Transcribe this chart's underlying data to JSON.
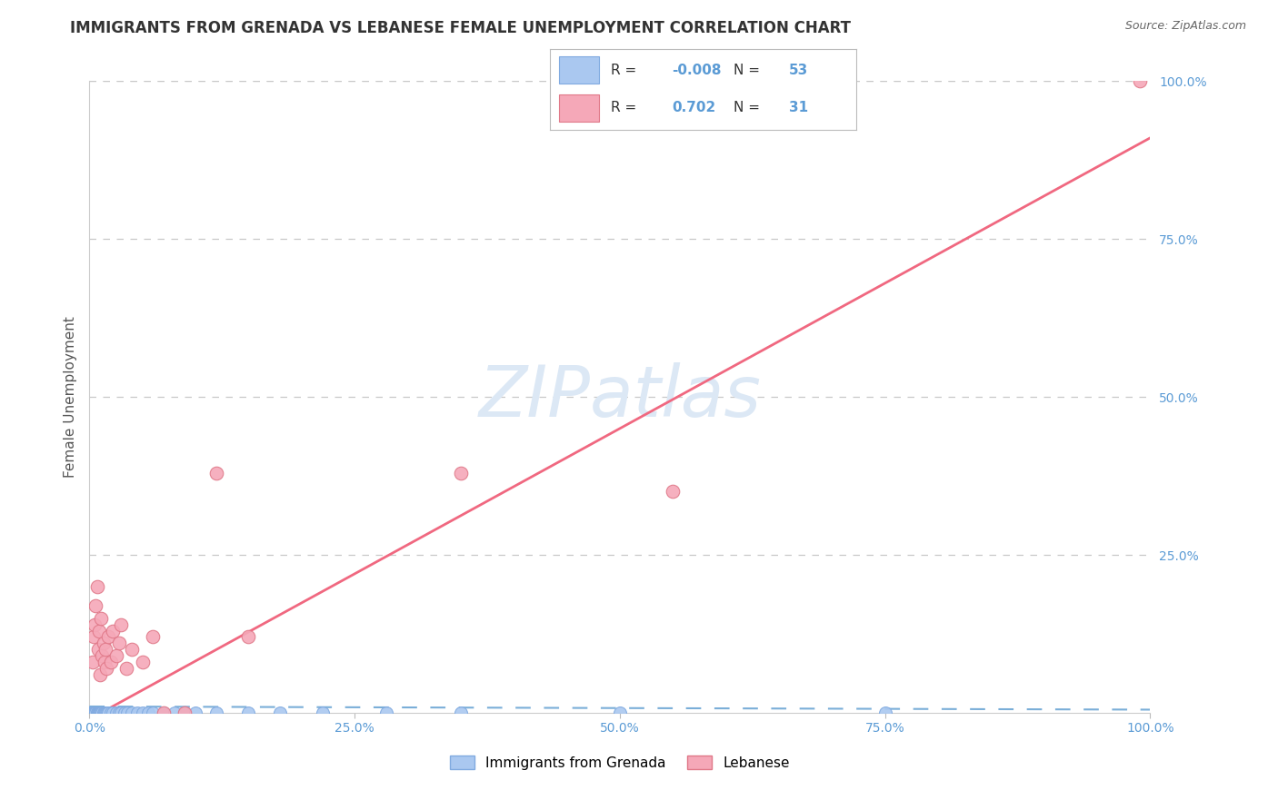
{
  "title": "IMMIGRANTS FROM GRENADA VS LEBANESE FEMALE UNEMPLOYMENT CORRELATION CHART",
  "source": "Source: ZipAtlas.com",
  "ylabel": "Female Unemployment",
  "legend_bottom": [
    "Immigrants from Grenada",
    "Lebanese"
  ],
  "r_grenada": "-0.008",
  "n_grenada": "53",
  "r_lebanese": "0.702",
  "n_lebanese": "31",
  "title_color": "#333333",
  "source_color": "#666666",
  "axis_label_color": "#555555",
  "tick_color": "#5b9bd5",
  "grid_color": "#c8c8c8",
  "watermark_text": "ZIPatlas",
  "watermark_color": "#dce8f5",
  "grenada_color": "#aac8f0",
  "grenada_edge": "#80aae0",
  "lebanese_color": "#f5a8b8",
  "lebanese_edge": "#e07888",
  "grenada_line_color": "#7aaed8",
  "lebanese_line_color": "#f06880",
  "legend_text_color": "#333333",
  "legend_value_color": "#5b9bd5",
  "grenada_x": [
    0.0,
    0.001,
    0.001,
    0.002,
    0.002,
    0.003,
    0.003,
    0.004,
    0.004,
    0.005,
    0.005,
    0.006,
    0.006,
    0.007,
    0.007,
    0.008,
    0.008,
    0.009,
    0.009,
    0.01,
    0.01,
    0.011,
    0.012,
    0.013,
    0.014,
    0.015,
    0.016,
    0.017,
    0.018,
    0.02,
    0.022,
    0.025,
    0.028,
    0.03,
    0.033,
    0.036,
    0.04,
    0.045,
    0.05,
    0.055,
    0.06,
    0.07,
    0.08,
    0.09,
    0.1,
    0.12,
    0.15,
    0.18,
    0.22,
    0.28,
    0.35,
    0.5,
    0.75
  ],
  "grenada_y": [
    0.0,
    0.0,
    0.0,
    0.0,
    0.0,
    0.0,
    0.0,
    0.0,
    0.0,
    0.0,
    0.0,
    0.0,
    0.0,
    0.0,
    0.0,
    0.0,
    0.0,
    0.0,
    0.0,
    0.0,
    0.0,
    0.0,
    0.0,
    0.0,
    0.0,
    0.0,
    0.0,
    0.0,
    0.0,
    0.0,
    0.0,
    0.0,
    0.0,
    0.0,
    0.0,
    0.0,
    0.0,
    0.0,
    0.0,
    0.0,
    0.0,
    0.0,
    0.0,
    0.0,
    0.0,
    0.0,
    0.0,
    0.0,
    0.0,
    0.0,
    0.0,
    0.0,
    0.0
  ],
  "lebanese_x": [
    0.003,
    0.004,
    0.005,
    0.006,
    0.007,
    0.008,
    0.009,
    0.01,
    0.011,
    0.012,
    0.013,
    0.014,
    0.015,
    0.016,
    0.018,
    0.02,
    0.022,
    0.025,
    0.028,
    0.03,
    0.035,
    0.04,
    0.05,
    0.06,
    0.07,
    0.09,
    0.12,
    0.15,
    0.35,
    0.55,
    0.99
  ],
  "lebanese_y": [
    0.08,
    0.12,
    0.14,
    0.17,
    0.2,
    0.1,
    0.13,
    0.06,
    0.15,
    0.09,
    0.11,
    0.08,
    0.1,
    0.07,
    0.12,
    0.08,
    0.13,
    0.09,
    0.11,
    0.14,
    0.07,
    0.1,
    0.08,
    0.12,
    0.0,
    0.0,
    0.38,
    0.12,
    0.38,
    0.35,
    1.0
  ],
  "xlim": [
    0.0,
    1.0
  ],
  "ylim": [
    0.0,
    1.0
  ]
}
